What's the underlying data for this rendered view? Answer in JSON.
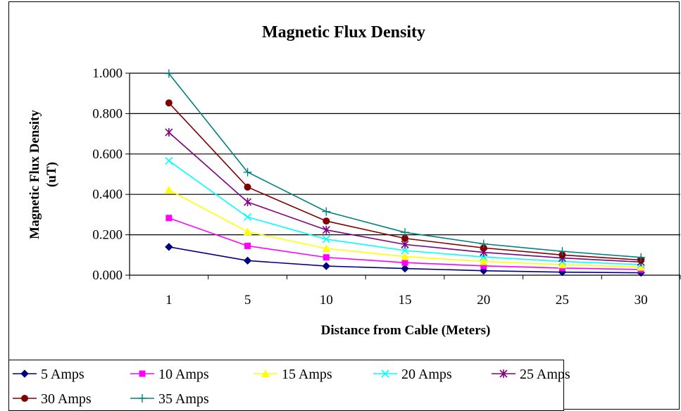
{
  "chart_data": {
    "type": "line",
    "title": "Magnetic Flux Density",
    "xlabel": "Distance from Cable (Meters)",
    "ylabel_line1": "Magnetic Flux Density",
    "ylabel_line2": "(uT)",
    "categories": [
      "1",
      "5",
      "10",
      "15",
      "20",
      "25",
      "30"
    ],
    "ylim": [
      0,
      1.0
    ],
    "yticks": [
      "0.000",
      "0.200",
      "0.400",
      "0.600",
      "0.800",
      "1.000"
    ],
    "grid": "horizontal",
    "legend_position": "bottom",
    "series": [
      {
        "name": "5 Amps",
        "color": "#000080",
        "marker": "diamond",
        "values": [
          0.14,
          0.072,
          0.045,
          0.033,
          0.022,
          0.015,
          0.012
        ]
      },
      {
        "name": "10 Amps",
        "color": "#ff00ff",
        "marker": "square",
        "values": [
          0.283,
          0.145,
          0.088,
          0.062,
          0.046,
          0.035,
          0.028
        ]
      },
      {
        "name": "15 Amps",
        "color": "#ffff00",
        "marker": "triangle",
        "values": [
          0.422,
          0.215,
          0.132,
          0.092,
          0.068,
          0.052,
          0.04
        ]
      },
      {
        "name": "20 Amps",
        "color": "#00ffff",
        "marker": "x",
        "values": [
          0.566,
          0.288,
          0.178,
          0.122,
          0.09,
          0.068,
          0.052
        ]
      },
      {
        "name": "25 Amps",
        "color": "#800080",
        "marker": "star",
        "values": [
          0.707,
          0.362,
          0.224,
          0.152,
          0.113,
          0.085,
          0.065
        ]
      },
      {
        "name": "30 Amps",
        "color": "#800000",
        "marker": "circle",
        "values": [
          0.853,
          0.436,
          0.268,
          0.182,
          0.135,
          0.1,
          0.075
        ]
      },
      {
        "name": "35 Amps",
        "color": "#008080",
        "marker": "plus",
        "values": [
          0.998,
          0.51,
          0.315,
          0.212,
          0.155,
          0.118,
          0.088
        ]
      }
    ]
  }
}
